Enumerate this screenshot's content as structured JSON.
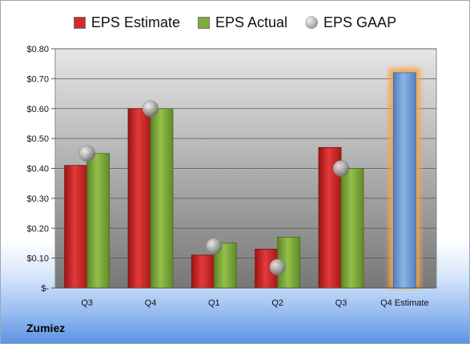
{
  "legend": {
    "estimate": "EPS Estimate",
    "actual": "EPS Actual",
    "gaap": "EPS GAAP"
  },
  "footer": {
    "company": "Zumiez"
  },
  "colors": {
    "estimate": "#d22b2b",
    "actual": "#7fac3a",
    "gaap": "#9a9a9a",
    "future_estimate": "#6f9fd8",
    "highlight": "#f5a54a"
  },
  "chart_data": {
    "type": "bar",
    "categories": [
      "Q3",
      "Q4",
      "Q1",
      "Q2",
      "Q3",
      "Q4 Estimate"
    ],
    "series": [
      {
        "name": "EPS Estimate",
        "values": [
          0.41,
          0.6,
          0.11,
          0.13,
          0.47,
          null
        ]
      },
      {
        "name": "EPS Actual",
        "values": [
          0.45,
          0.6,
          0.15,
          0.17,
          0.4,
          null
        ]
      },
      {
        "name": "EPS GAAP",
        "values": [
          0.45,
          0.6,
          0.14,
          0.07,
          0.4,
          null
        ]
      },
      {
        "name": "Q4 Estimate",
        "values": [
          null,
          null,
          null,
          null,
          null,
          0.72
        ]
      }
    ],
    "ylim": [
      0,
      0.8
    ],
    "yticks": [
      "$-",
      "$0.10",
      "$0.20",
      "$0.30",
      "$0.40",
      "$0.50",
      "$0.60",
      "$0.70",
      "$0.80"
    ],
    "grid": true,
    "legend_position": "top"
  }
}
